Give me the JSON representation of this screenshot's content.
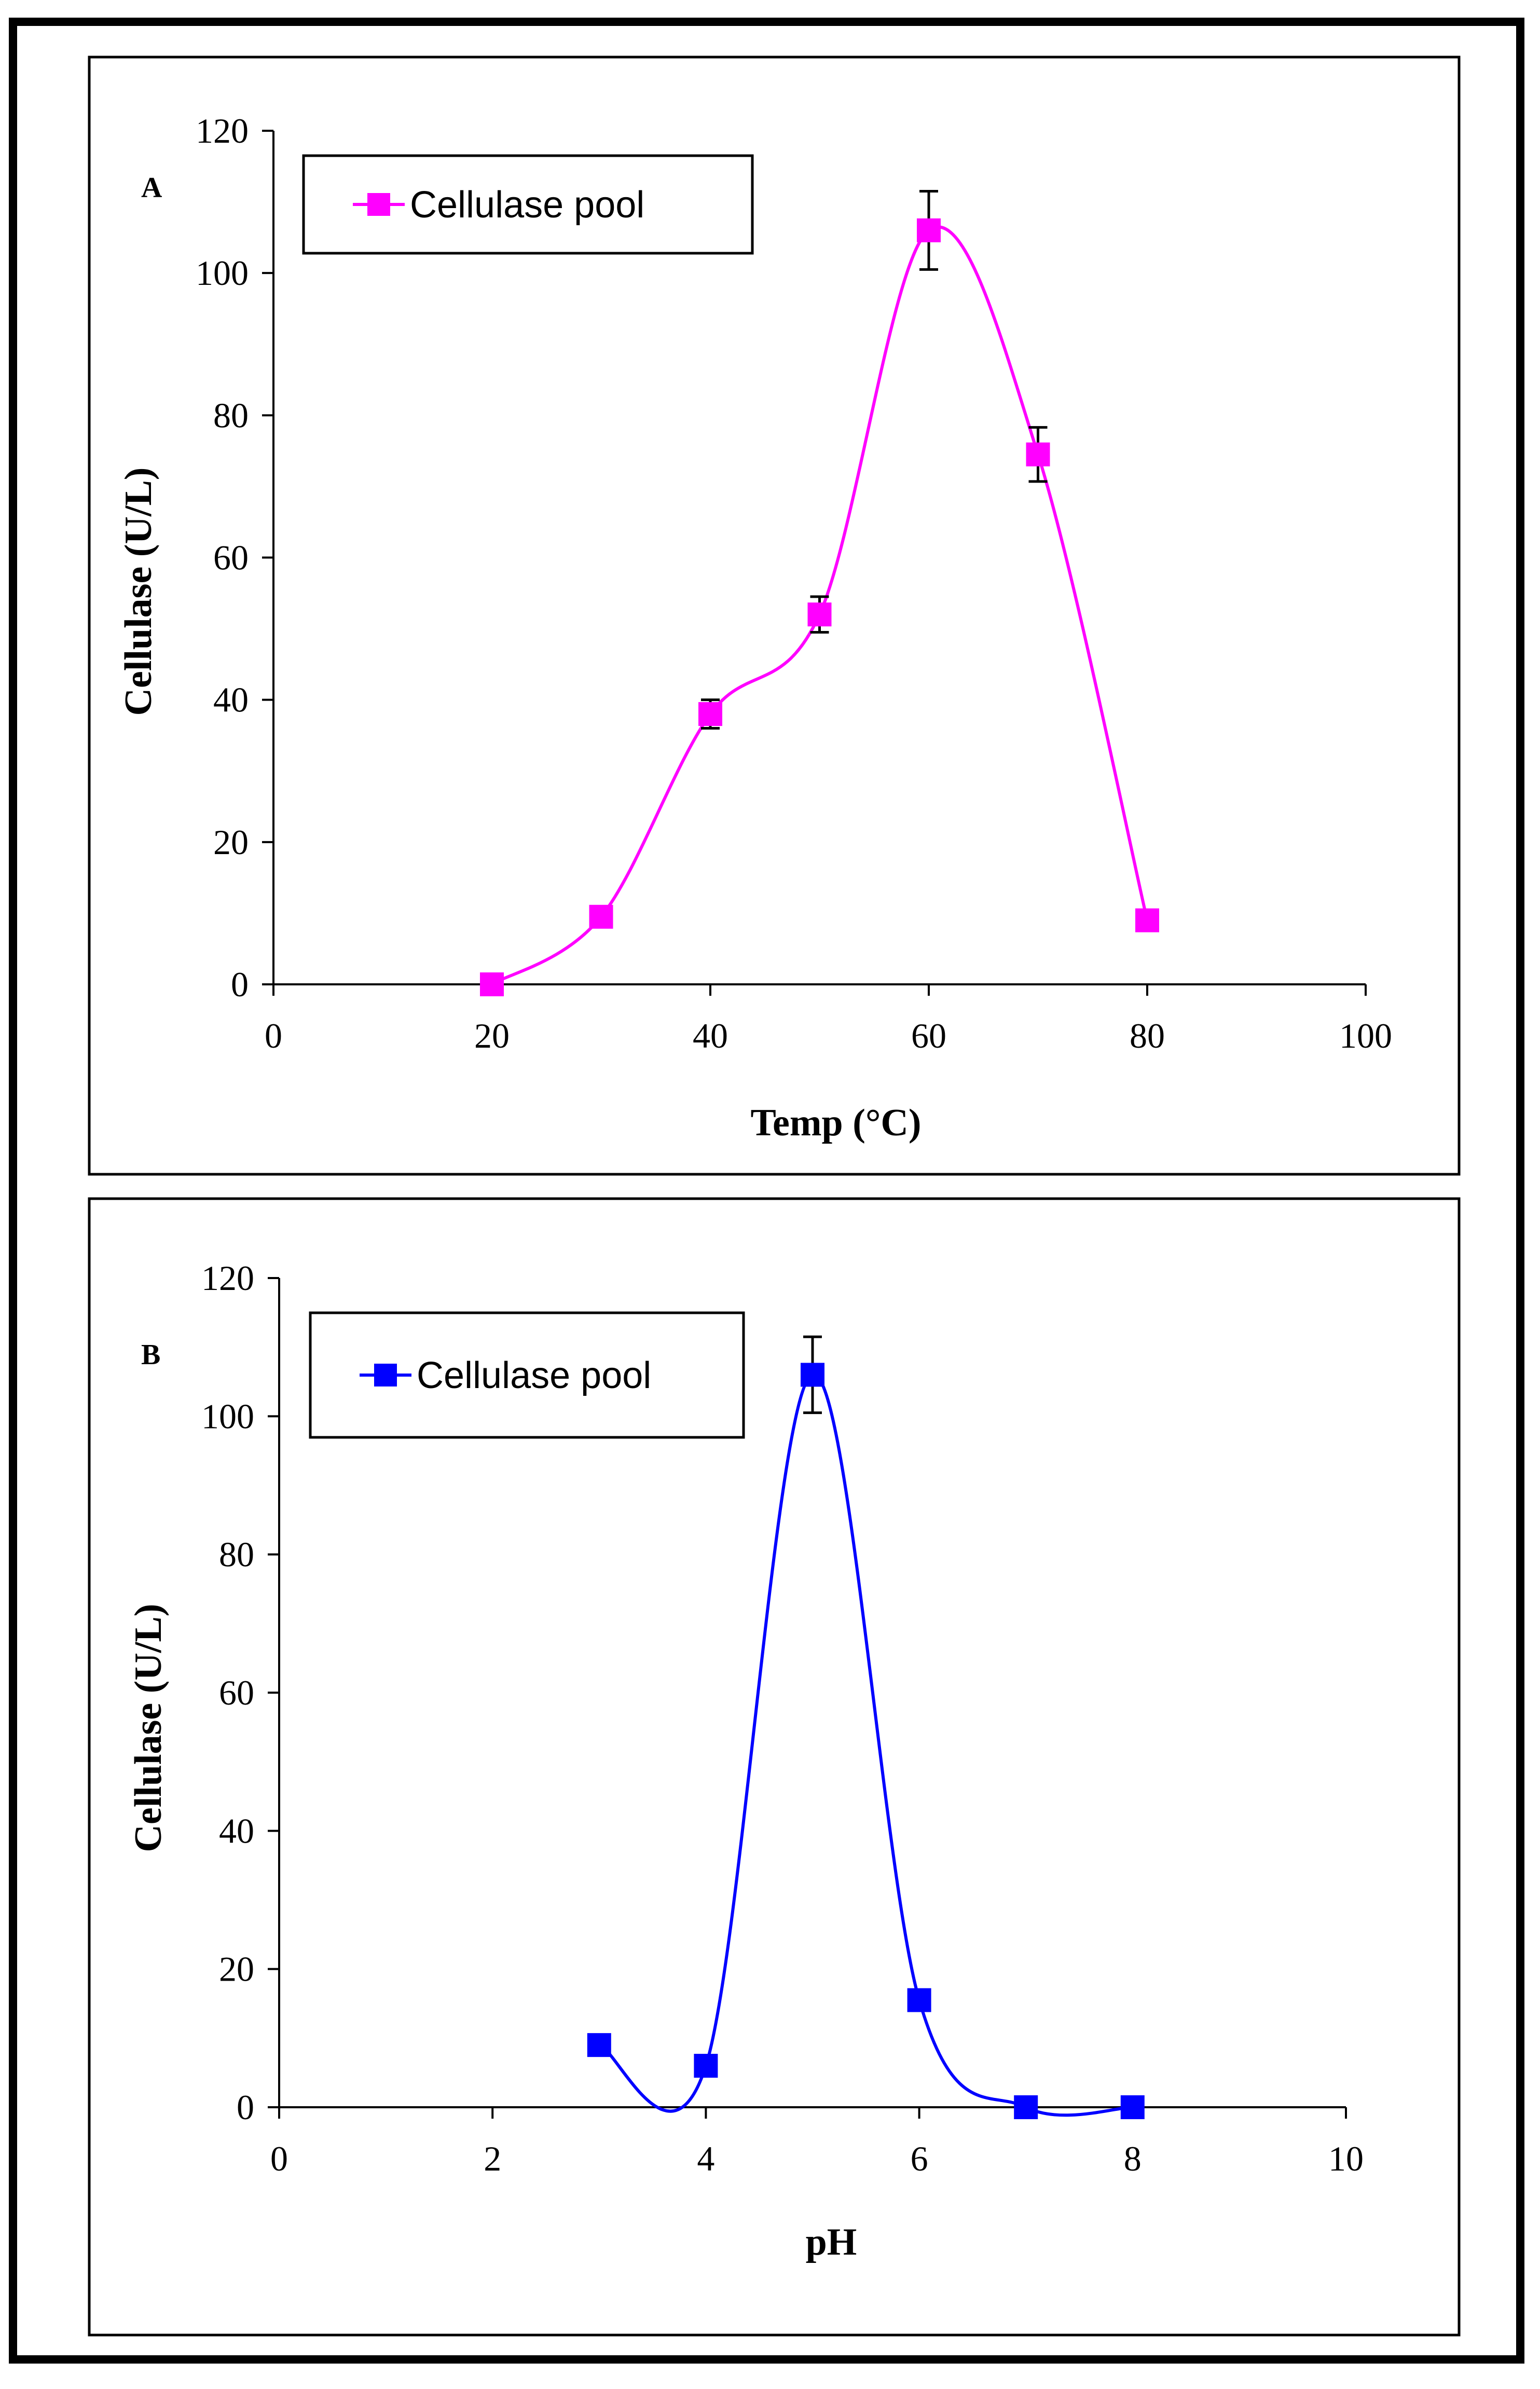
{
  "chart_data": [
    {
      "panel": "A",
      "type": "line",
      "smooth": true,
      "xlabel": "Temp (°C)",
      "ylabel": "Cellulase (U/L)",
      "xlim": [
        0,
        100
      ],
      "ylim": [
        0,
        120
      ],
      "xticks": [
        0,
        20,
        40,
        60,
        80,
        100
      ],
      "yticks": [
        0,
        20,
        40,
        60,
        80,
        100,
        120
      ],
      "grid": false,
      "legend_position": "top-left",
      "series": [
        {
          "name": "Cellulase pool",
          "color": "#FF00FF",
          "marker": "square",
          "x": [
            20,
            30,
            40,
            50,
            60,
            70,
            80
          ],
          "y": [
            0,
            9.5,
            38,
            52,
            106,
            74.5,
            9
          ],
          "error": [
            0,
            0,
            2,
            2.5,
            5.5,
            3.8,
            0
          ]
        }
      ]
    },
    {
      "panel": "B",
      "type": "line",
      "smooth": true,
      "xlabel": "pH",
      "ylabel": "Cellulase (U/L)",
      "xlim": [
        0,
        10
      ],
      "ylim": [
        0,
        120
      ],
      "xticks": [
        0,
        2,
        4,
        6,
        8,
        10
      ],
      "yticks": [
        0,
        20,
        40,
        60,
        80,
        100,
        120
      ],
      "grid": false,
      "legend_position": "top-left",
      "series": [
        {
          "name": "Cellulase pool",
          "color": "#0000FF",
          "marker": "square",
          "x": [
            3,
            4,
            5,
            6,
            7,
            8
          ],
          "y": [
            9,
            6,
            106,
            15.5,
            0,
            0
          ],
          "error": [
            0,
            0,
            5.5,
            0,
            0,
            0
          ]
        }
      ]
    }
  ]
}
